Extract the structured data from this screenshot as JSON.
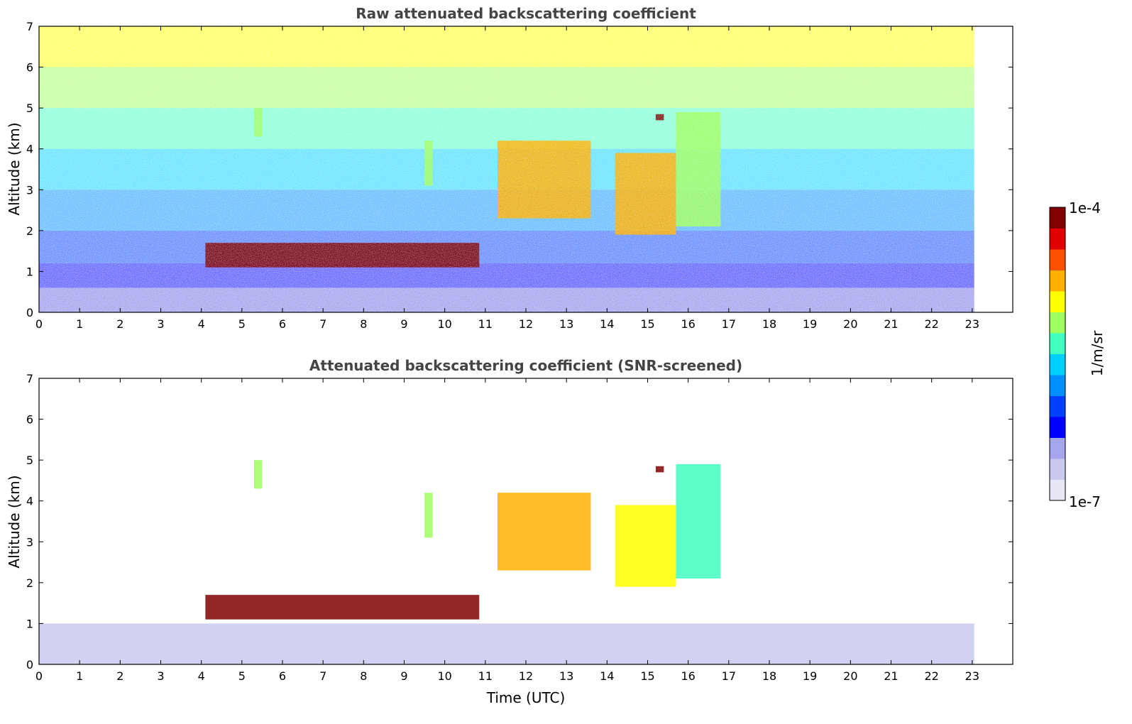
{
  "chart_data": [
    {
      "type": "heatmap",
      "title": "Raw attenuated backscattering coefficient",
      "xlabel": "",
      "ylabel": "Altitude (km)",
      "xlim": [
        0,
        24
      ],
      "ylim": [
        0,
        7
      ],
      "x_ticks": [
        "0",
        "1",
        "2",
        "3",
        "4",
        "5",
        "6",
        "7",
        "8",
        "9",
        "10",
        "11",
        "12",
        "13",
        "14",
        "15",
        "16",
        "17",
        "18",
        "19",
        "20",
        "21",
        "22",
        "23"
      ],
      "y_ticks": [
        "0",
        "1",
        "2",
        "3",
        "4",
        "5",
        "6",
        "7"
      ],
      "data_time_range_utc": [
        0,
        23.05
      ],
      "scale": "log",
      "features": [
        {
          "name": "near-surface aerosol layer",
          "t_start": 0,
          "t_end": 23.05,
          "alt_bottom": 0,
          "alt_top": 0.6,
          "level": 0.12
        },
        {
          "name": "low liquid cloud layer",
          "t_start": 4.1,
          "t_end": 10.85,
          "alt_bottom": 1.1,
          "alt_top": 1.7,
          "level": 0.98
        },
        {
          "name": "ice virga",
          "t_start": 5.3,
          "t_end": 5.5,
          "alt_bottom": 4.3,
          "alt_top": 5.0,
          "level": 0.6
        },
        {
          "name": "ice virga",
          "t_start": 9.5,
          "t_end": 9.7,
          "alt_bottom": 3.1,
          "alt_top": 4.2,
          "level": 0.65
        },
        {
          "name": "ice virga",
          "t_start": 11.3,
          "t_end": 13.6,
          "alt_bottom": 2.3,
          "alt_top": 4.2,
          "level": 0.78
        },
        {
          "name": "ice virga",
          "t_start": 14.2,
          "t_end": 15.7,
          "alt_bottom": 1.9,
          "alt_top": 3.9,
          "level": 0.75
        },
        {
          "name": "ice virga",
          "t_start": 15.7,
          "t_end": 16.8,
          "alt_bottom": 2.1,
          "alt_top": 4.9,
          "level": 0.6
        },
        {
          "name": "small cloud",
          "t_start": 15.2,
          "t_end": 15.4,
          "alt_bottom": 4.7,
          "alt_top": 4.85,
          "level": 1.0
        }
      ]
    },
    {
      "type": "heatmap",
      "title": "Attenuated backscattering coefficient (SNR-screened)",
      "xlabel": "Time (UTC)",
      "ylabel": "Altitude (km)",
      "xlim": [
        0,
        24
      ],
      "ylim": [
        0,
        7
      ],
      "x_ticks": [
        "0",
        "1",
        "2",
        "3",
        "4",
        "5",
        "6",
        "7",
        "8",
        "9",
        "10",
        "11",
        "12",
        "13",
        "14",
        "15",
        "16",
        "17",
        "18",
        "19",
        "20",
        "21",
        "22",
        "23"
      ],
      "y_ticks": [
        "0",
        "1",
        "2",
        "3",
        "4",
        "5",
        "6",
        "7"
      ],
      "data_time_range_utc": [
        0,
        23.05
      ],
      "scale": "log",
      "features": [
        {
          "name": "boundary layer aerosol",
          "t_start": 0,
          "t_end": 23.05,
          "alt_bottom": 0,
          "alt_top": 1.0,
          "level": 0.1
        },
        {
          "name": "low liquid cloud layer",
          "t_start": 4.1,
          "t_end": 10.85,
          "alt_bottom": 1.1,
          "alt_top": 1.7,
          "level": 1.0
        },
        {
          "name": "ice virga",
          "t_start": 5.3,
          "t_end": 5.5,
          "alt_bottom": 4.3,
          "alt_top": 5.0,
          "level": 0.6
        },
        {
          "name": "ice virga",
          "t_start": 9.5,
          "t_end": 9.7,
          "alt_bottom": 3.1,
          "alt_top": 4.2,
          "level": 0.6
        },
        {
          "name": "ice virga",
          "t_start": 11.3,
          "t_end": 13.6,
          "alt_bottom": 2.3,
          "alt_top": 4.2,
          "level": 0.75
        },
        {
          "name": "ice virga",
          "t_start": 14.2,
          "t_end": 15.7,
          "alt_bottom": 1.9,
          "alt_top": 3.9,
          "level": 0.72
        },
        {
          "name": "ice virga",
          "t_start": 15.7,
          "t_end": 16.8,
          "alt_bottom": 2.1,
          "alt_top": 4.9,
          "level": 0.55
        },
        {
          "name": "small cloud",
          "t_start": 15.2,
          "t_end": 15.4,
          "alt_bottom": 4.7,
          "alt_top": 4.85,
          "level": 1.0
        }
      ]
    }
  ],
  "colorbar": {
    "label": "1/m/sr",
    "max_label": "1e-4",
    "min_label": "1e-7",
    "colors": [
      "#e6e6f5",
      "#c9c9ee",
      "#a6a6ee",
      "#0000ff",
      "#0040ff",
      "#0090ff",
      "#00d0ff",
      "#40ffc0",
      "#a0ff60",
      "#ffff00",
      "#ffb000",
      "#ff5000",
      "#e00000",
      "#800000"
    ]
  }
}
